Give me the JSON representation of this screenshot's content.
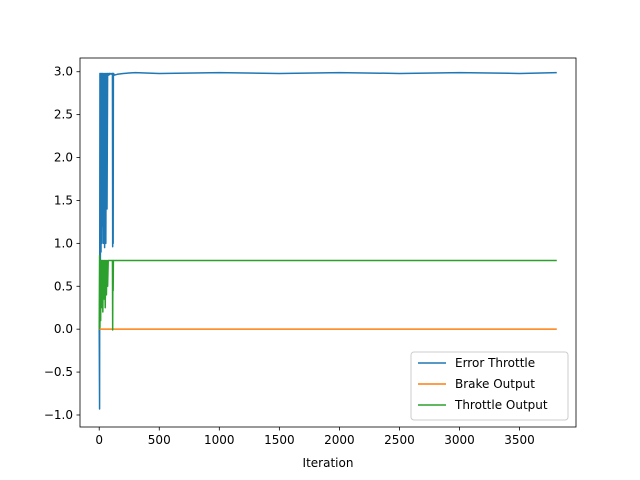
{
  "chart_data": {
    "type": "line",
    "title": "",
    "xlabel": "Iteration",
    "ylabel": "",
    "xlim": [
      -160,
      3970
    ],
    "ylim": [
      -1.14,
      3.16
    ],
    "xticks": [
      0,
      500,
      1000,
      1500,
      2000,
      2500,
      3000,
      3500
    ],
    "xtick_labels": [
      "0",
      "500",
      "1000",
      "1500",
      "2000",
      "2500",
      "3000",
      "3500"
    ],
    "yticks": [
      -1.0,
      -0.5,
      0.0,
      0.5,
      1.0,
      1.5,
      2.0,
      2.5,
      3.0
    ],
    "ytick_labels": [
      "−1.0",
      "−0.5",
      "0.0",
      "0.5",
      "1.0",
      "1.5",
      "2.0",
      "2.5",
      "3.0"
    ],
    "grid": false,
    "legend_position": "lower-right",
    "series": [
      {
        "name": "Error Throttle",
        "color": "#1f77b4",
        "x": [
          0,
          3,
          6,
          9,
          12,
          15,
          18,
          21,
          24,
          27,
          30,
          35,
          40,
          45,
          50,
          55,
          60,
          65,
          70,
          75,
          80,
          85,
          90,
          95,
          100,
          105,
          110,
          112,
          114,
          116,
          118,
          120,
          125,
          150,
          200,
          300,
          500,
          1000,
          1500,
          2000,
          2500,
          3000,
          3500,
          3810
        ],
        "y": [
          0.0,
          -0.93,
          2.98,
          0.2,
          2.98,
          0.9,
          2.98,
          1.0,
          2.98,
          1.2,
          2.98,
          1.0,
          2.98,
          0.95,
          2.98,
          1.0,
          2.98,
          1.4,
          2.98,
          2.98,
          2.96,
          2.98,
          2.97,
          2.98,
          2.98,
          2.97,
          2.98,
          0.96,
          2.98,
          1.0,
          2.98,
          2.98,
          2.96,
          2.97,
          2.98,
          2.99,
          2.98,
          2.99,
          2.98,
          2.99,
          2.98,
          2.99,
          2.98,
          2.99
        ]
      },
      {
        "name": "Brake Output",
        "color": "#ff7f0e",
        "x": [
          0,
          3810
        ],
        "y": [
          0.0,
          0.0
        ]
      },
      {
        "name": "Throttle Output",
        "color": "#2ca02c",
        "x": [
          0,
          3,
          6,
          9,
          12,
          15,
          18,
          21,
          24,
          27,
          30,
          35,
          40,
          45,
          50,
          55,
          60,
          65,
          70,
          75,
          80,
          100,
          110,
          112,
          114,
          116,
          118,
          120,
          150,
          3810
        ],
        "y": [
          0.0,
          0.86,
          0.02,
          0.8,
          0.1,
          0.8,
          0.25,
          0.8,
          0.3,
          0.8,
          0.2,
          0.8,
          0.35,
          0.8,
          0.25,
          0.8,
          0.4,
          0.8,
          0.5,
          0.8,
          0.8,
          0.8,
          0.8,
          -0.01,
          0.8,
          0.45,
          0.8,
          0.8,
          0.8,
          0.8
        ]
      }
    ]
  }
}
